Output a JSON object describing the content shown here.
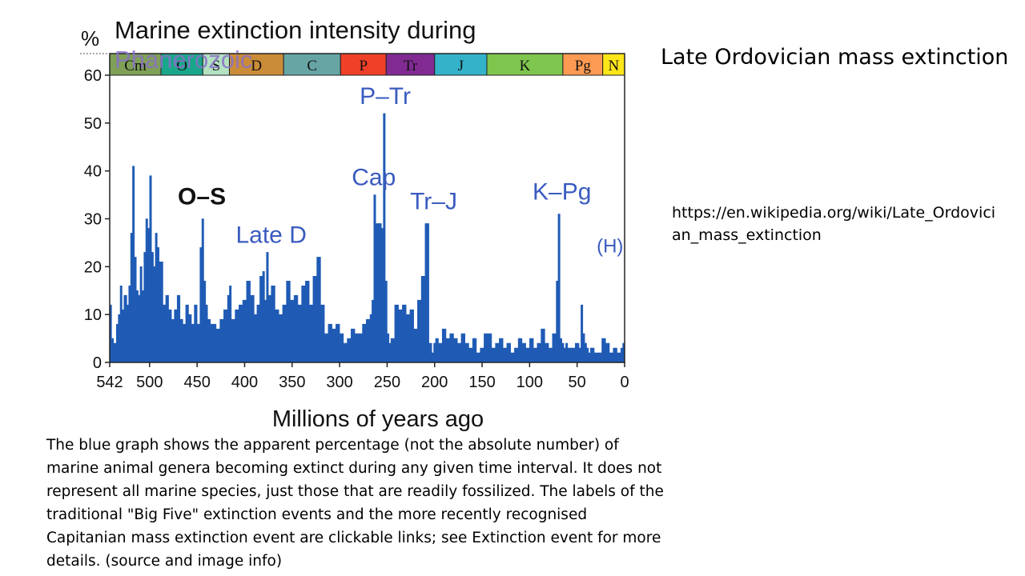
{
  "slide": {
    "title": "Late Ordovician mass extinction",
    "link": "https://en.wikipedia.org/wiki/Late_Ordovician_mass_extinction",
    "caption": "The blue graph shows the apparent percentage (not the absolute number) of marine animal genera becoming extinct during any given time interval. It does not represent all marine species, just those that are readily fossilized. The labels of the traditional \"Big Five\" extinction events and the more recently recognised Capitanian mass extinction event are clickable links; see Extinction event for more details. (source and image info)"
  },
  "chart_data": {
    "type": "area",
    "title": "Marine extinction intensity during Phanerozoic",
    "ylabel": "%",
    "xlabel": "Millions of years ago",
    "xlim": [
      542,
      0
    ],
    "ylim": [
      0,
      60
    ],
    "x_ticks": [
      542,
      500,
      450,
      400,
      350,
      300,
      250,
      200,
      150,
      100,
      50,
      0
    ],
    "y_ticks": [
      0,
      10,
      20,
      30,
      40,
      50,
      60
    ],
    "fill_color": "#1f5bb5",
    "periods": [
      {
        "label": "Cm",
        "start": 542,
        "end": 488,
        "color": "#7fa056"
      },
      {
        "label": "O",
        "start": 488,
        "end": 444,
        "color": "#1aa68a"
      },
      {
        "label": "S",
        "start": 444,
        "end": 416,
        "color": "#b3e1c2"
      },
      {
        "label": "D",
        "start": 416,
        "end": 359,
        "color": "#cb8c37"
      },
      {
        "label": "C",
        "start": 359,
        "end": 299,
        "color": "#67a5a5"
      },
      {
        "label": "P",
        "start": 299,
        "end": 251,
        "color": "#f04028"
      },
      {
        "label": "Tr",
        "start": 251,
        "end": 200,
        "color": "#812b92"
      },
      {
        "label": "J",
        "start": 200,
        "end": 145,
        "color": "#34b2c9"
      },
      {
        "label": "K",
        "start": 145,
        "end": 65,
        "color": "#7fc64e"
      },
      {
        "label": "Pg",
        "start": 65,
        "end": 23,
        "color": "#fd9a52"
      },
      {
        "label": "N",
        "start": 23,
        "end": 0,
        "color": "#ffe619"
      }
    ],
    "annotations": [
      {
        "label": "O–S",
        "x": 445,
        "y": 33
      },
      {
        "label": "Late D",
        "x": 372,
        "y": 25
      },
      {
        "label": "Cap",
        "x": 264,
        "y": 37
      },
      {
        "label": "P–Tr",
        "x": 252,
        "y": 54
      },
      {
        "label": "Tr–J",
        "x": 201,
        "y": 32
      },
      {
        "label": "K–Pg",
        "x": 66,
        "y": 34
      },
      {
        "label": "(H)",
        "x": 12,
        "y": 23
      }
    ],
    "x": [
      542,
      540,
      538,
      535,
      533,
      531,
      529,
      527,
      524,
      522,
      520,
      518,
      516,
      514,
      512,
      510,
      508,
      506,
      504,
      502,
      500,
      498,
      496,
      494,
      492,
      490,
      488,
      486,
      483,
      480,
      477,
      474,
      471,
      468,
      465,
      462,
      459,
      456,
      453,
      450,
      447,
      445,
      443,
      441,
      439,
      436,
      433,
      430,
      426,
      422,
      418,
      416,
      414,
      410,
      406,
      402,
      398,
      394,
      390,
      387,
      384,
      381,
      379,
      377,
      375,
      372,
      368,
      364,
      360,
      356,
      352,
      348,
      344,
      340,
      336,
      332,
      328,
      324,
      320,
      316,
      312,
      308,
      304,
      300,
      296,
      292,
      288,
      284,
      280,
      276,
      272,
      268,
      266,
      264,
      262,
      260,
      258,
      256,
      254,
      252,
      250,
      248,
      246,
      242,
      238,
      234,
      230,
      226,
      222,
      218,
      214,
      210,
      206,
      203,
      201,
      199,
      196,
      192,
      188,
      184,
      180,
      176,
      172,
      168,
      164,
      160,
      156,
      152,
      148,
      144,
      140,
      136,
      132,
      128,
      124,
      120,
      116,
      112,
      108,
      104,
      100,
      96,
      92,
      88,
      84,
      80,
      76,
      72,
      70,
      68,
      66,
      64,
      62,
      60,
      56,
      52,
      48,
      46,
      44,
      42,
      40,
      38,
      36,
      32,
      28,
      24,
      20,
      16,
      12,
      8,
      4,
      2,
      0
    ],
    "y": [
      12,
      5,
      4,
      8,
      10,
      16,
      11,
      14,
      12,
      16,
      27,
      41,
      22,
      15,
      14,
      20,
      15,
      23,
      30,
      28,
      39,
      23,
      20,
      27,
      24,
      21,
      21,
      12,
      14,
      11,
      9,
      11,
      14,
      9,
      8,
      12,
      10,
      8,
      12,
      8,
      24,
      30,
      17,
      12,
      9,
      8,
      8,
      7,
      9,
      11,
      14,
      16,
      9,
      11,
      12,
      13,
      17,
      14,
      10,
      12,
      18,
      19,
      13,
      23,
      14,
      16,
      11,
      10,
      12,
      17,
      13,
      14,
      12,
      16,
      17,
      12,
      18,
      22,
      12,
      6,
      8,
      7,
      8,
      6,
      4,
      5,
      7,
      6,
      6,
      8,
      9,
      10,
      13,
      35,
      29,
      29,
      29,
      28,
      52,
      17,
      6,
      4,
      5,
      12,
      11,
      12,
      10,
      11,
      7,
      13,
      18,
      29,
      4,
      2,
      4,
      5,
      4,
      7,
      5,
      6,
      5,
      4,
      6,
      4,
      3,
      5,
      2,
      3,
      6,
      6,
      3,
      4,
      5,
      3,
      4,
      2,
      3,
      5,
      4,
      3,
      5,
      3,
      4,
      7,
      4,
      3,
      6,
      17,
      31,
      5,
      4,
      3,
      4,
      3,
      3,
      4,
      3,
      12,
      6,
      4,
      3,
      2,
      3,
      2,
      2,
      5,
      4,
      2,
      3,
      2,
      3,
      4,
      3
    ]
  }
}
